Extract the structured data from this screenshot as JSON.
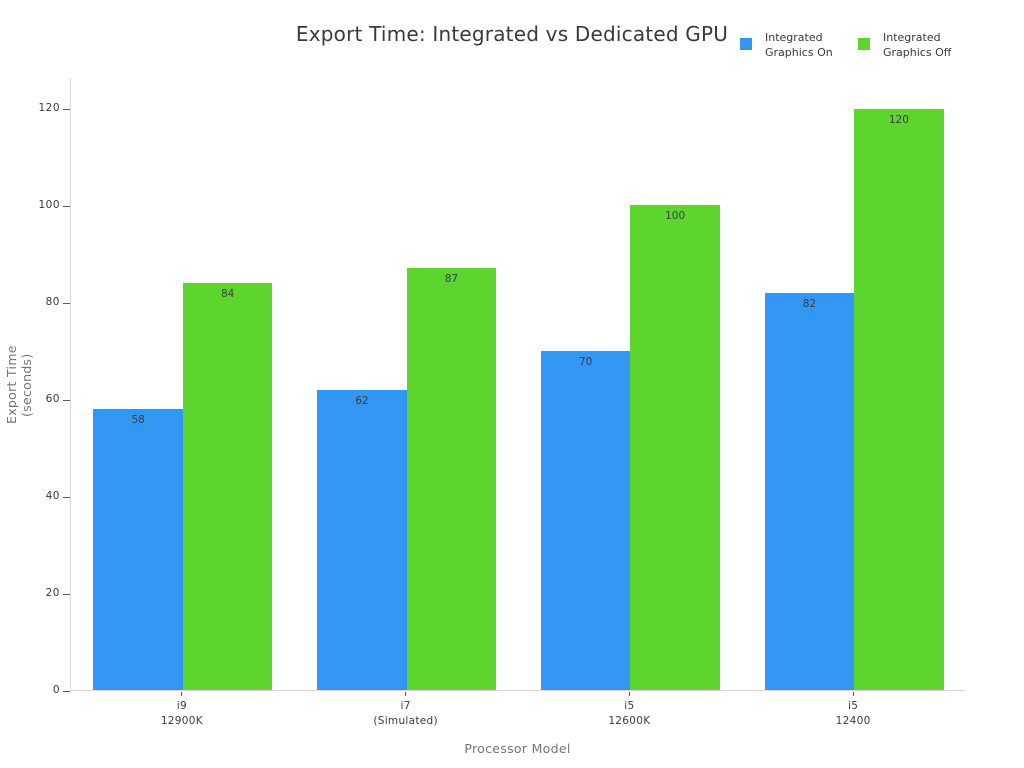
{
  "chart_data": {
    "type": "bar",
    "title": "Export Time: Integrated vs Dedicated GPU",
    "xlabel": "Processor Model",
    "ylabel": "Export Time (seconds)",
    "categories": [
      "i9\n12900K",
      "i7\n(Simulated)",
      "i5\n12600K",
      "i5\n12400"
    ],
    "series": [
      {
        "name": "Integrated\nGraphics On",
        "color": "#3296f3",
        "values": [
          58,
          62,
          70,
          82
        ]
      },
      {
        "name": "Integrated\nGraphics Off",
        "color": "#5ed42f",
        "values": [
          84,
          87,
          100,
          120
        ]
      }
    ],
    "yticks": [
      0,
      20,
      40,
      60,
      80,
      100,
      120
    ],
    "ylim": [
      0,
      126.5
    ],
    "grid": false,
    "legend_position": "top-right",
    "bar_value_labels": true
  },
  "colors": {
    "background": "#ffffff",
    "axis_spine": "#d9d9d9",
    "tick_text": "#3b3b3b",
    "axis_label_text": "#757575",
    "title_text": "#3a3a3a",
    "bar_label_text": "#3d3d3d"
  }
}
